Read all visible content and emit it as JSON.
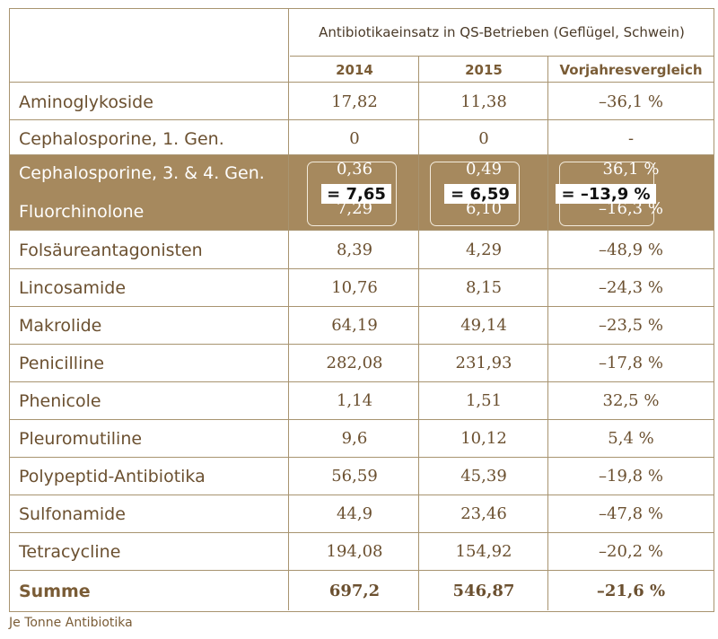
{
  "table": {
    "header_title": "Antibiotikaeinsatz in QS-Betrieben (Geflügel, Schwein)",
    "columns": [
      "2014",
      "2015",
      "Vorjahresvergleich"
    ],
    "rows": [
      {
        "name": "Aminoglykoside",
        "y2014": "17,82",
        "y2015": "11,38",
        "change": "–36,1 %"
      },
      {
        "name": "Cephalosporine, 1. Gen.",
        "y2014": "0",
        "y2015": "0",
        "change": "-"
      },
      {
        "name": "Cephalosporine, 3. & 4. Gen.",
        "y2014": "0,36",
        "y2015": "0,49",
        "change": "36,1 %"
      },
      {
        "name": "Fluorchinolone",
        "y2014": "7,29",
        "y2015": "6,10",
        "change": "–16,3 %"
      },
      {
        "name": "Folsäureantagonisten",
        "y2014": "8,39",
        "y2015": "4,29",
        "change": "–48,9 %"
      },
      {
        "name": "Lincosamide",
        "y2014": "10,76",
        "y2015": "8,15",
        "change": "–24,3 %"
      },
      {
        "name": "Makrolide",
        "y2014": "64,19",
        "y2015": "49,14",
        "change": "–23,5 %"
      },
      {
        "name": "Penicilline",
        "y2014": "282,08",
        "y2015": "231,93",
        "change": "–17,8 %"
      },
      {
        "name": "Phenicole",
        "y2014": "1,14",
        "y2015": "1,51",
        "change": "32,5 %"
      },
      {
        "name": "Pleuromutiline",
        "y2014": "9,6",
        "y2015": "10,12",
        "change": "5,4 %"
      },
      {
        "name": "Polypeptid-Antibiotika",
        "y2014": "56,59",
        "y2015": "45,39",
        "change": "–19,8 %"
      },
      {
        "name": "Sulfonamide",
        "y2014": "44,9",
        "y2015": "23,46",
        "change": "–47,8 %"
      },
      {
        "name": "Tetracycline",
        "y2014": "194,08",
        "y2015": "154,92",
        "change": "–20,2 %"
      }
    ],
    "total": {
      "name": "Summe",
      "y2014": "697,2",
      "y2015": "546,87",
      "change": "–21,6 %"
    },
    "combined": {
      "y2014": "= 7,65",
      "y2015": "= 6,59",
      "change": "= –13,9 %"
    }
  },
  "colors": {
    "highlight_band": "#a6895e",
    "border": "#a89470",
    "text": "#6b5030"
  },
  "footnote": "Je Tonne Antibiotika"
}
